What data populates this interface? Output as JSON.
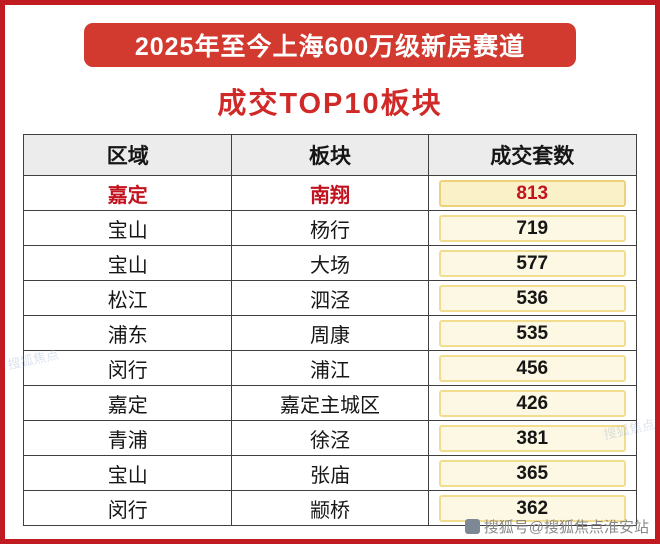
{
  "banner": {
    "title": "2025年至今上海600万级新房赛道"
  },
  "page_title": "成交TOP10板块",
  "table": {
    "headers": [
      "区域",
      "板块",
      "成交套数"
    ],
    "rows": [
      {
        "region": "嘉定",
        "plate": "南翔",
        "count": 813
      },
      {
        "region": "宝山",
        "plate": "杨行",
        "count": 719
      },
      {
        "region": "宝山",
        "plate": "大场",
        "count": 577
      },
      {
        "region": "松江",
        "plate": "泗泾",
        "count": 536
      },
      {
        "region": "浦东",
        "plate": "周康",
        "count": 535
      },
      {
        "region": "闵行",
        "plate": "浦江",
        "count": 456
      },
      {
        "region": "嘉定",
        "plate": "嘉定主城区",
        "count": 426
      },
      {
        "region": "青浦",
        "plate": "徐泾",
        "count": 381
      },
      {
        "region": "宝山",
        "plate": "张庙",
        "count": 365
      },
      {
        "region": "闵行",
        "plate": "颛桥",
        "count": 362
      }
    ]
  },
  "watermark": {
    "corner": "搜狐号@搜狐焦点淮安站",
    "stamp": "搜狐焦点"
  },
  "colors": {
    "frame": "#bf1b20",
    "banner_bg": "#d23a30",
    "title_red": "#d02a28",
    "highlight_red": "#c3131f",
    "header_bg": "#ececec",
    "count_box_bg": "#fdf8e3",
    "count_box_border": "#f2dc8e"
  },
  "chart_data": {
    "type": "table",
    "title": "2025年至今上海600万级新房赛道 成交TOP10板块",
    "columns": [
      "区域",
      "板块",
      "成交套数"
    ],
    "rows": [
      [
        "嘉定",
        "南翔",
        813
      ],
      [
        "宝山",
        "杨行",
        719
      ],
      [
        "宝山",
        "大场",
        577
      ],
      [
        "松江",
        "泗泾",
        536
      ],
      [
        "浦东",
        "周康",
        535
      ],
      [
        "闵行",
        "浦江",
        456
      ],
      [
        "嘉定",
        "嘉定主城区",
        426
      ],
      [
        "青浦",
        "徐泾",
        381
      ],
      [
        "宝山",
        "张庙",
        365
      ],
      [
        "闵行",
        "颛桥",
        362
      ]
    ]
  }
}
